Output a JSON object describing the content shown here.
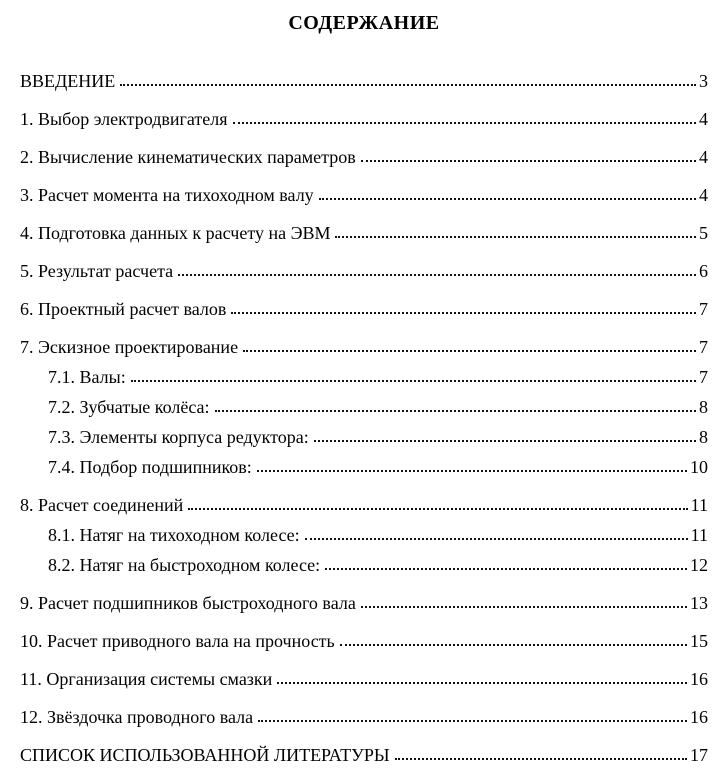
{
  "document": {
    "title": "СОДЕРЖАНИЕ",
    "colors": {
      "text": "#000000",
      "page_background": "#ffffff",
      "leader_dots": "#111111"
    },
    "entries": [
      {
        "label": "ВВЕДЕНИЕ",
        "page": "3",
        "level": 0
      },
      {
        "label": "1. Выбор электродвигателя",
        "page": "4",
        "level": 0
      },
      {
        "label": "2. Вычисление кинематических параметров",
        "page": "4",
        "level": 0
      },
      {
        "label": "3. Расчет момента на тихоходном валу",
        "page": "4",
        "level": 0
      },
      {
        "label": "4. Подготовка данных к расчету на ЭВМ",
        "page": "5",
        "level": 0
      },
      {
        "label": "5. Результат расчета",
        "page": "6",
        "level": 0
      },
      {
        "label": "6. Проектный расчет валов",
        "page": "7",
        "level": 0
      },
      {
        "label": "7. Эскизное проектирование",
        "page": "7",
        "level": 0
      },
      {
        "label": "7.1. Валы:",
        "page": "7",
        "level": 1
      },
      {
        "label": "7.2. Зубчатые колёса:",
        "page": "8",
        "level": 1
      },
      {
        "label": "7.3. Элементы корпуса редуктора:",
        "page": "8",
        "level": 1
      },
      {
        "label": "7.4. Подбор подшипников:",
        "page": "10",
        "level": 1
      },
      {
        "label": "8. Расчет соединений",
        "page": "11",
        "level": 0
      },
      {
        "label": "8.1. Натяг на тихоходном колесе:",
        "page": "11",
        "level": 1
      },
      {
        "label": "8.2. Натяг на быстроходном колесе:",
        "page": "12",
        "level": 1
      },
      {
        "label": "9. Расчет подшипников быстроходного вала",
        "page": "13",
        "level": 0
      },
      {
        "label": "10. Расчет приводного вала на прочность",
        "page": "15",
        "level": 0
      },
      {
        "label": "11. Организация системы смазки",
        "page": "16",
        "level": 0
      },
      {
        "label": "12. Звёздочка проводного вала",
        "page": "16",
        "level": 0
      },
      {
        "label": "СПИСОК ИСПОЛЬЗОВАННОЙ ЛИТЕРАТУРЫ",
        "page": "17",
        "level": 0
      }
    ]
  }
}
